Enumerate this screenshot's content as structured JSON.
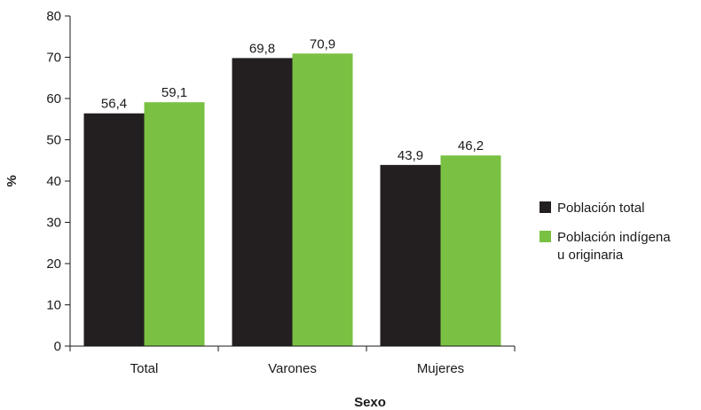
{
  "chart_data": {
    "type": "bar",
    "categories": [
      "Total",
      "Varones",
      "Mujeres"
    ],
    "series": [
      {
        "name": "Población total",
        "values": [
          56.4,
          69.8,
          43.9
        ],
        "color": "#231f20"
      },
      {
        "name": "Población indígena u originaria",
        "name_lines": [
          "Población indígena",
          "u originaria"
        ],
        "values": [
          59.1,
          70.9,
          46.2
        ],
        "color": "#7ac143"
      }
    ],
    "value_labels": [
      [
        "56,4",
        "69,8",
        "43,9"
      ],
      [
        "59,1",
        "70,9",
        "46,2"
      ]
    ],
    "title": "",
    "xlabel": "Sexo",
    "ylabel": "%",
    "ylim": [
      0,
      80
    ],
    "yticks": [
      0,
      10,
      20,
      30,
      40,
      50,
      60,
      70,
      80
    ],
    "grid": false,
    "legend_position": "right"
  }
}
